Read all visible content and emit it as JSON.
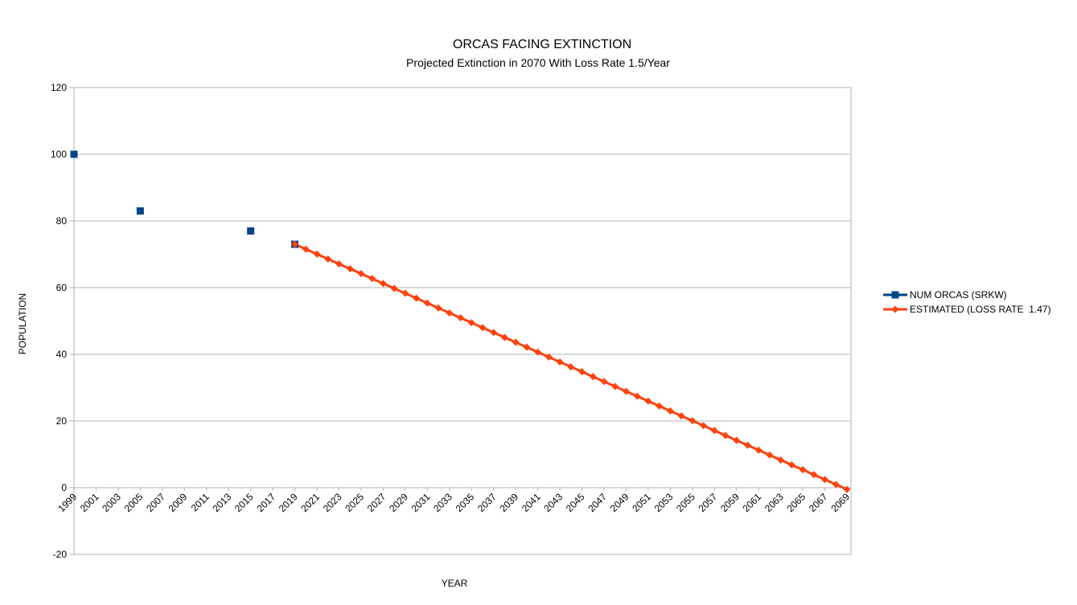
{
  "chart_data": {
    "type": "line",
    "title": "ORCAS FACING EXTINCTION",
    "subtitle": "Projected Extinction in 2070 With Loss Rate 1.5/Year",
    "xlabel": "YEAR",
    "ylabel": "POPULATION",
    "xlim": [
      1999,
      2069
    ],
    "ylim": [
      -20,
      120
    ],
    "y_ticks": [
      -20,
      0,
      20,
      40,
      60,
      80,
      100,
      120
    ],
    "x_tick_labels": [
      1999,
      2001,
      2003,
      2005,
      2007,
      2009,
      2011,
      2013,
      2015,
      2017,
      2019,
      2021,
      2023,
      2025,
      2027,
      2029,
      2031,
      2033,
      2035,
      2037,
      2039,
      2041,
      2043,
      2045,
      2047,
      2049,
      2051,
      2053,
      2055,
      2057,
      2059,
      2061,
      2063,
      2065,
      2067,
      2069
    ],
    "grid": true,
    "legend_position": "right",
    "series": [
      {
        "name": "NUM ORCAS (SRKW)",
        "color": "#004586",
        "marker": "square",
        "line": false,
        "x": [
          1999,
          2005,
          2015,
          2019
        ],
        "y": [
          100,
          83,
          77,
          73
        ]
      },
      {
        "name": "ESTIMATED (LOSS RATE  1.47)",
        "color": "#ff420e",
        "marker": "diamond",
        "line": true,
        "start_year": 2019,
        "start_value": 73,
        "loss_rate": 1.47,
        "end_year": 2069
      }
    ]
  }
}
